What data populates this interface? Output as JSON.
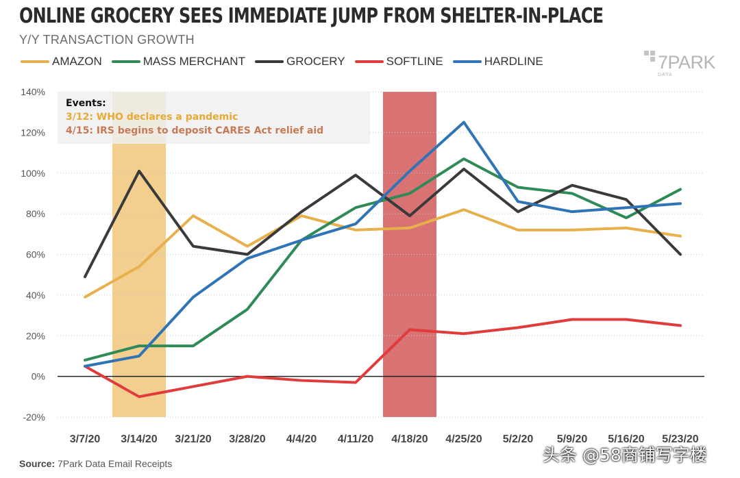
{
  "chart_data": {
    "type": "line",
    "title": "ONLINE GROCERY SEES IMMEDIATE JUMP FROM SHELTER-IN-PLACE",
    "subtitle": "Y/Y TRANSACTION GROWTH",
    "xlabel": "",
    "ylabel": "",
    "ylim": [
      -20,
      140
    ],
    "yticks": [
      -20,
      0,
      20,
      40,
      60,
      80,
      100,
      120,
      140
    ],
    "ytick_labels": [
      "-20%",
      "0%",
      "20%",
      "40%",
      "60%",
      "80%",
      "100%",
      "120%",
      "140%"
    ],
    "categories": [
      "3/7/20",
      "3/14/20",
      "3/21/20",
      "3/28/20",
      "4/4/20",
      "4/11/20",
      "4/18/20",
      "4/25/20",
      "5/2/20",
      "5/9/20",
      "5/16/20",
      "5/23/20"
    ],
    "series": [
      {
        "name": "AMAZON",
        "color": "#e8b04c",
        "values": [
          39,
          54,
          79,
          64,
          79,
          72,
          73,
          82,
          72,
          72,
          73,
          69
        ]
      },
      {
        "name": "MASS MERCHANT",
        "color": "#2e8b57",
        "values": [
          8,
          15,
          15,
          33,
          67,
          83,
          90,
          107,
          93,
          90,
          78,
          92
        ]
      },
      {
        "name": "GROCERY",
        "color": "#3a3a3a",
        "values": [
          49,
          101,
          64,
          60,
          81,
          99,
          79,
          102,
          81,
          94,
          87,
          60
        ]
      },
      {
        "name": "SOFTLINE",
        "color": "#e03c3c",
        "values": [
          5,
          -10,
          -5,
          0,
          -2,
          -3,
          23,
          21,
          24,
          28,
          28,
          25
        ]
      },
      {
        "name": "HARDLINE",
        "color": "#2f74b5",
        "values": [
          5,
          10,
          39,
          58,
          67,
          75,
          101,
          125,
          86,
          81,
          83,
          85
        ]
      }
    ],
    "highlights": [
      {
        "category": "3/14/20",
        "color": "#f2cf8f"
      },
      {
        "category": "4/18/20",
        "color": "#d97272"
      }
    ],
    "grid": "horizontal-dotted",
    "legend_position": "top-left",
    "events": {
      "title": "Events:",
      "items": [
        {
          "text": "3/12: WHO declares a pandemic",
          "color": "#e8a935"
        },
        {
          "text": "4/15: IRS begins to deposit CARES Act relief aid",
          "color": "#c87a56"
        }
      ]
    }
  },
  "logo": {
    "text": "7PARK",
    "sub": "DATA"
  },
  "footer": {
    "label": "Source:",
    "text": "7Park Data Email Receipts"
  },
  "watermark": "头条 @58商铺写字楼"
}
